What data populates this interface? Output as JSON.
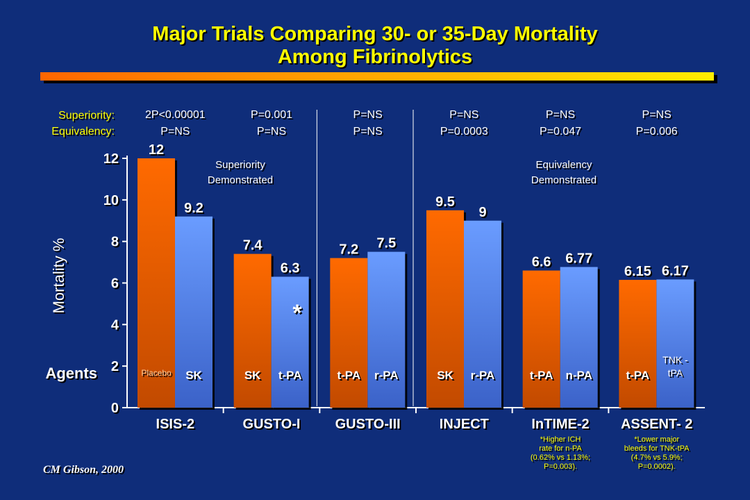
{
  "title_line1": "Major Trials Comparing 30- or 35-Day Mortality",
  "title_line2": "Among Fibrinolytics",
  "credit": "CM Gibson, 2000",
  "colors": {
    "background": "#0f2d7a",
    "title": "#ffff00",
    "agent1": "#ff6600",
    "agent2": "#6699ff",
    "accent_bar": "#ffcc00"
  },
  "chart_data": {
    "type": "bar",
    "ylabel": "Mortality %",
    "ylim": [
      0,
      12
    ],
    "yticks": [
      "0",
      "2",
      "4",
      "6",
      "8",
      "10",
      "12"
    ],
    "grid": false,
    "row_labels": {
      "superiority": "Superiority:",
      "equivalency": "Equivalency:",
      "agents": "Agents"
    },
    "groups": [
      {
        "trial": "ISIS-2",
        "superiority_p": "2P<0.00001",
        "equivalency_p": "P=NS",
        "bars": [
          {
            "agent": "Placebo",
            "value": 12,
            "label": "12"
          },
          {
            "agent": "SK",
            "value": 9.2,
            "label": "9.2"
          }
        ]
      },
      {
        "trial": "GUSTO-I",
        "superiority_p": "P=0.001",
        "equivalency_p": "P=NS",
        "bars": [
          {
            "agent": "SK",
            "value": 7.4,
            "label": "7.4"
          },
          {
            "agent": "t-PA",
            "value": 6.3,
            "label": "6.3"
          }
        ]
      },
      {
        "trial": "GUSTO-III",
        "superiority_p": "P=NS",
        "equivalency_p": "P=NS",
        "bars": [
          {
            "agent": "t-PA",
            "value": 7.2,
            "label": "7.2"
          },
          {
            "agent": "r-PA",
            "value": 7.5,
            "label": "7.5"
          }
        ]
      },
      {
        "trial": "INJECT",
        "superiority_p": "P=NS",
        "equivalency_p": "P=0.0003",
        "bars": [
          {
            "agent": "SK",
            "value": 9.5,
            "label": "9.5"
          },
          {
            "agent": "r-PA",
            "value": 9,
            "label": "9"
          }
        ]
      },
      {
        "trial": "InTIME-2",
        "superiority_p": "P=NS",
        "equivalency_p": "P=0.047",
        "bars": [
          {
            "agent": "t-PA",
            "value": 6.6,
            "label": "6.6"
          },
          {
            "agent": "n-PA",
            "value": 6.77,
            "label": "6.77"
          }
        ],
        "footnote": [
          "*Higher ICH",
          "rate for n-PA",
          "(0.62% vs 1.13%;",
          "P=0.003)."
        ]
      },
      {
        "trial": "ASSENT- 2",
        "superiority_p": "P=NS",
        "equivalency_p": "P=0.006",
        "bars": [
          {
            "agent": "t-PA",
            "value": 6.15,
            "label": "6.15"
          },
          {
            "agent": "TNK - tPA",
            "value": 6.17,
            "label": "6.17"
          }
        ],
        "footnote": [
          "*Lower major",
          "bleeds for TNK-tPA",
          "(4.7% vs 5.9%;",
          "P=0.0002)."
        ]
      }
    ],
    "annotations": {
      "superiority": [
        "Superiority",
        "Demonstrated"
      ],
      "equivalency": [
        "Equivalency",
        "Demonstrated"
      ],
      "asterisk": "*"
    }
  }
}
